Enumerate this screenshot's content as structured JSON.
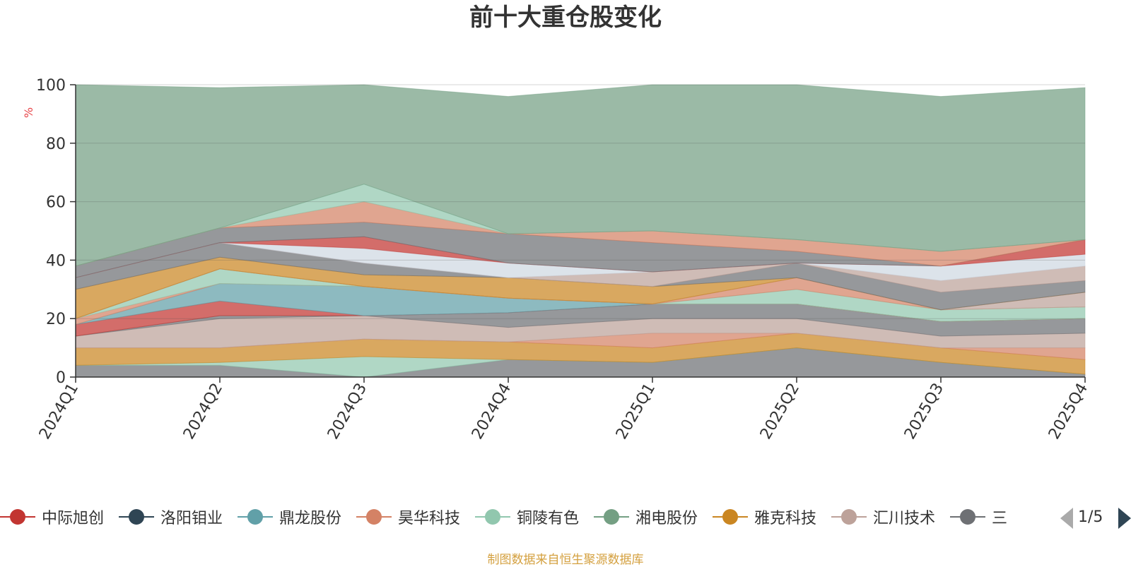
{
  "title": "前十大重仓股变化",
  "source_note": "制图数据来自恒生聚源数据库",
  "legend_pager": "1/5",
  "chart_data": {
    "type": "area",
    "stacked": true,
    "unit": "%",
    "categories": [
      "2024Q1",
      "2024Q2",
      "2024Q3",
      "2024Q4",
      "2025Q1",
      "2025Q2",
      "2025Q3",
      "2025Q4"
    ],
    "ylim": [
      0,
      100
    ],
    "yticks": [
      "0",
      "20",
      "40",
      "60",
      "80",
      "100"
    ],
    "grid": true,
    "legend_position": "bottom",
    "series": [
      {
        "name": "中际旭创",
        "color": "#c23531"
      },
      {
        "name": "洛阳钼业",
        "color": "#2f4554"
      },
      {
        "name": "鼎龙股份",
        "color": "#61a0a8"
      },
      {
        "name": "昊华科技",
        "color": "#d48265"
      },
      {
        "name": "铜陵有色",
        "color": "#91c7ae"
      },
      {
        "name": "湘电股份",
        "color": "#749f83"
      },
      {
        "name": "雅克科技",
        "color": "#ca8622"
      },
      {
        "name": "汇川技术",
        "color": "#bda29a"
      },
      {
        "name": "三",
        "color": "#6e7074"
      }
    ],
    "layers": [
      {
        "color": "#6e7074",
        "values": [
          4,
          4,
          0,
          6,
          5,
          10,
          5,
          1
        ]
      },
      {
        "color": "#91c7ae",
        "values": [
          0,
          1,
          7,
          0,
          0,
          0,
          0,
          0
        ]
      },
      {
        "color": "#ca8622",
        "values": [
          6,
          5,
          6,
          6,
          5,
          5,
          5,
          5
        ]
      },
      {
        "color": "#d48265",
        "values": [
          0,
          0,
          0,
          0,
          5,
          0,
          0,
          4
        ]
      },
      {
        "color": "#bda29a",
        "values": [
          4,
          10,
          8,
          5,
          5,
          5,
          4,
          5
        ]
      },
      {
        "color": "#6e7074",
        "values": [
          0,
          1,
          0,
          5,
          5,
          5,
          5,
          5
        ]
      },
      {
        "color": "#c23531",
        "values": [
          4,
          5,
          0,
          0,
          0,
          0,
          0,
          0
        ]
      },
      {
        "color": "#61a0a8",
        "values": [
          0,
          6,
          10,
          5,
          0,
          0,
          0,
          0
        ]
      },
      {
        "color": "#d48265",
        "values": [
          2,
          0,
          0,
          0,
          0,
          0,
          0,
          0
        ]
      },
      {
        "color": "#91c7ae",
        "values": [
          0,
          5,
          0,
          0,
          0,
          5,
          4,
          4
        ]
      },
      {
        "color": "#d48265",
        "values": [
          0,
          0,
          0,
          0,
          0,
          4,
          0,
          0
        ]
      },
      {
        "color": "#bda29a",
        "values": [
          0,
          0,
          0,
          0,
          0,
          0,
          0,
          5
        ]
      },
      {
        "color": "#ca8622",
        "values": [
          10,
          4,
          4,
          7,
          6,
          0,
          0,
          0
        ]
      },
      {
        "color": "#6e7074",
        "values": [
          4,
          5,
          4,
          0,
          0,
          5,
          6,
          4
        ]
      },
      {
        "color": "#bda29a",
        "values": [
          0,
          0,
          0,
          0,
          5,
          0,
          4,
          5
        ]
      },
      {
        "color": "#cfd8e2",
        "values": [
          0,
          0,
          5,
          5,
          0,
          0,
          5,
          4
        ]
      },
      {
        "color": "#c23531",
        "values": [
          0,
          0,
          4,
          0,
          0,
          0,
          0,
          5
        ]
      },
      {
        "color": "#6e7074",
        "values": [
          4,
          5,
          5,
          10,
          10,
          4,
          0,
          0
        ]
      },
      {
        "color": "#d48265",
        "values": [
          0,
          0,
          7,
          0,
          4,
          4,
          5,
          0
        ]
      },
      {
        "color": "#91c7ae",
        "values": [
          0,
          0,
          6,
          0,
          0,
          0,
          0,
          0
        ]
      },
      {
        "color": "#749f83",
        "values": [
          62,
          48,
          37,
          47,
          50,
          53,
          53,
          52
        ]
      }
    ]
  }
}
